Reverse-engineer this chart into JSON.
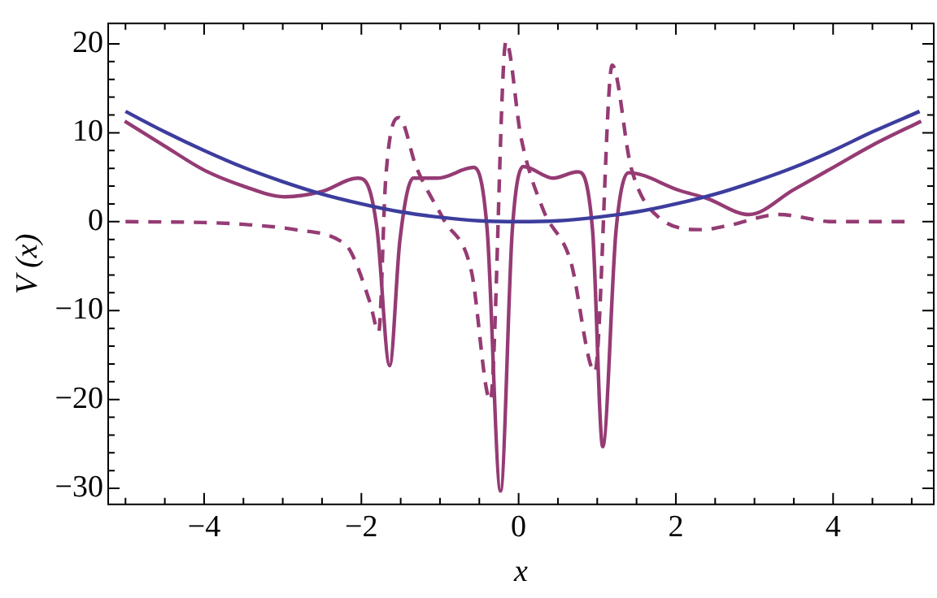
{
  "chart_data": {
    "type": "line",
    "xlabel": "x",
    "ylabel": "V (x)",
    "xlim": [
      -5.22,
      5.28
    ],
    "ylim": [
      -31.8,
      22.3
    ],
    "xticks": [
      {
        "value": -5,
        "label": null
      },
      {
        "value": -4.5,
        "label": null
      },
      {
        "value": -4,
        "label": "−4"
      },
      {
        "value": -3.5,
        "label": null
      },
      {
        "value": -3,
        "label": null
      },
      {
        "value": -2.5,
        "label": null
      },
      {
        "value": -2,
        "label": "−2"
      },
      {
        "value": -1.5,
        "label": null
      },
      {
        "value": -1,
        "label": null
      },
      {
        "value": -0.5,
        "label": null
      },
      0,
      {
        "value": 0.5,
        "label": null
      },
      {
        "value": 1,
        "label": null
      },
      {
        "value": 1.5,
        "label": null
      },
      2,
      {
        "value": 2.5,
        "label": null
      },
      {
        "value": 3,
        "label": null
      },
      {
        "value": 3.5,
        "label": null
      },
      4,
      {
        "value": 4.5,
        "label": null
      },
      {
        "value": 5,
        "label": null
      }
    ],
    "yticks": [
      {
        "value": -30,
        "label": "−30"
      },
      {
        "value": -28,
        "label": null
      },
      {
        "value": -26,
        "label": null
      },
      {
        "value": -24,
        "label": null
      },
      {
        "value": -22,
        "label": null
      },
      {
        "value": -20,
        "label": "−20"
      },
      {
        "value": -18,
        "label": null
      },
      {
        "value": -16,
        "label": null
      },
      {
        "value": -14,
        "label": null
      },
      {
        "value": -12,
        "label": null
      },
      {
        "value": -10,
        "label": "−10"
      },
      {
        "value": -8,
        "label": null
      },
      {
        "value": -6,
        "label": null
      },
      {
        "value": -4,
        "label": null
      },
      {
        "value": -2,
        "label": null
      },
      0,
      {
        "value": 2,
        "label": null
      },
      {
        "value": 4,
        "label": null
      },
      {
        "value": 6,
        "label": null
      },
      {
        "value": 8,
        "label": null
      },
      10,
      {
        "value": 12,
        "label": null
      },
      {
        "value": 14,
        "label": null
      },
      {
        "value": 16,
        "label": null
      },
      {
        "value": 18,
        "label": null
      },
      20
    ],
    "grid": false,
    "legend": false,
    "marker": "none",
    "series": [
      {
        "color": "#3d3d9e",
        "line_style": "solid",
        "x": [
          -5,
          -4.5,
          -4,
          -3.5,
          -3,
          -2.5,
          -2,
          -1.5,
          -1,
          -0.5,
          0,
          0.5,
          1,
          1.5,
          2,
          2.5,
          3,
          3.5,
          4,
          4.5,
          5.1
        ],
        "values": [
          12.4,
          10.1,
          8,
          6.1,
          4.5,
          3.1,
          2,
          1.1,
          0.5,
          0.1,
          0,
          0.1,
          0.5,
          1.1,
          2,
          3.1,
          4.5,
          6.1,
          8,
          10.1,
          12.4
        ]
      },
      {
        "color": "#953b74",
        "line_style": "solid",
        "x": [
          -5.01,
          -4.5,
          -4,
          -3.5,
          -2.98,
          -2.5,
          -2.05,
          -1.93,
          -1.8,
          -1.64,
          -1.51,
          -1.34,
          -1.03,
          -0.57,
          -0.4,
          -0.23,
          -0.08,
          0.06,
          0.44,
          0.75,
          0.94,
          1.07,
          1.24,
          1.4,
          2.05,
          2.4,
          2.93,
          3.5,
          4,
          4.5,
          5.12
        ],
        "values": [
          11.3,
          8.5,
          5.8,
          4,
          2.8,
          3.4,
          4.9,
          4.3,
          -0.9,
          -16.2,
          -2.1,
          4.9,
          4.9,
          6.1,
          -0.9,
          -30.3,
          -0.9,
          6.2,
          4.9,
          5.6,
          -0.9,
          -25.3,
          -0.9,
          5.5,
          3.5,
          2.6,
          0.8,
          3.6,
          6.1,
          8.6,
          11.3
        ]
      },
      {
        "color": "#953b74",
        "line_style": "dashed",
        "x": [
          -5,
          -4,
          -3.5,
          -2.84,
          -2.28,
          -2.14,
          -1.89,
          -1.78,
          -1.69,
          -1.52,
          -1.3,
          -0.95,
          -0.6,
          -0.36,
          -0.16,
          0.03,
          0.31,
          0.66,
          0.97,
          1.19,
          1.43,
          1.78,
          2.33,
          2.68,
          3.31,
          4,
          4.92
        ],
        "values": [
          0,
          -0.1,
          -0.3,
          -0.9,
          -2.1,
          -3.3,
          -9.1,
          -12.4,
          4.9,
          11.7,
          6.1,
          0.2,
          -5.6,
          -20.1,
          20.3,
          9.5,
          1.4,
          -4.4,
          -16.9,
          17.6,
          6.1,
          0.5,
          -0.9,
          -0.4,
          0.8,
          0,
          0
        ]
      }
    ]
  }
}
